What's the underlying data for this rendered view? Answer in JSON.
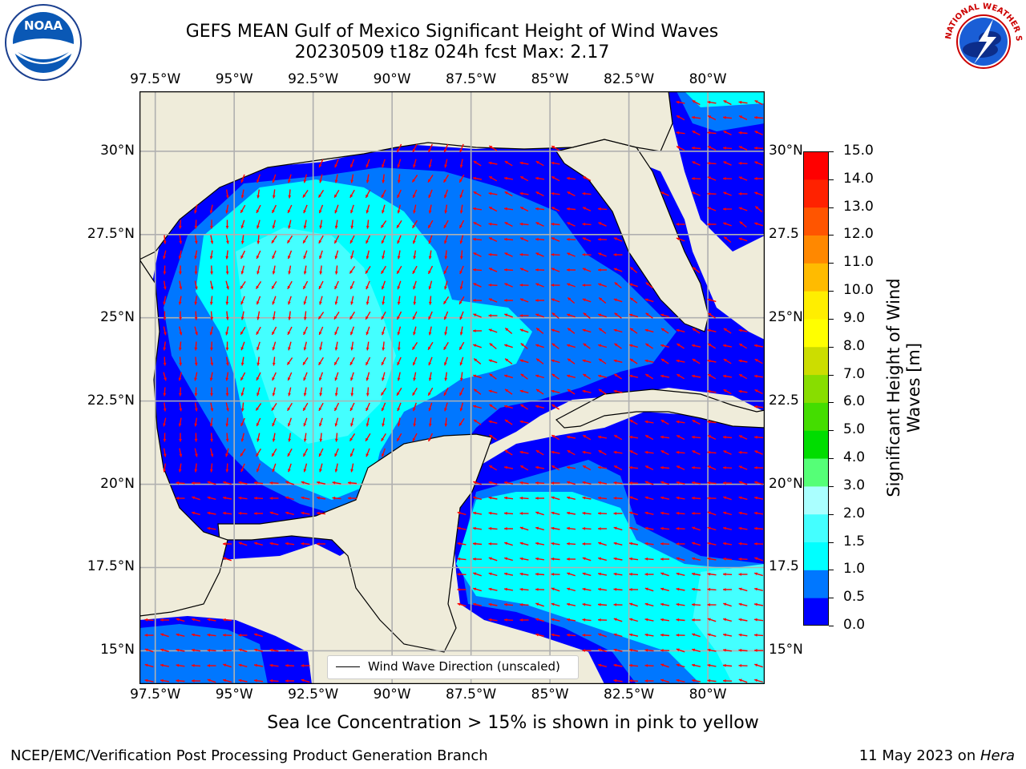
{
  "title": {
    "line1": "GEFS MEAN Gulf of Mexico Significant Height of Wind Waves",
    "line2": "20230509 t18z 024h fcst   Max: 2.17"
  },
  "logos": {
    "noaa_text": "NOAA",
    "nws_ring_text": "NATIONAL WEATHER SERVICE"
  },
  "map": {
    "lon_labels": [
      "97.5°W",
      "95°W",
      "92.5°W",
      "90°W",
      "87.5°W",
      "85°W",
      "82.5°W",
      "80°W"
    ],
    "lat_labels_left": [
      "30°N",
      "27.5°N",
      "25°N",
      "22.5°N",
      "20°N",
      "17.5°N",
      "15°N"
    ],
    "lat_labels_right": [
      "30°N",
      "27.5",
      "25°N",
      "22.5",
      "20°N",
      "17.5",
      "15°N"
    ],
    "lon_range": [
      -98,
      -78.2
    ],
    "lat_range": [
      14,
      31.8
    ],
    "land_color": "#efecda",
    "arrow_color": "#ff0000",
    "legend_label": "Wind Wave Direction (unscaled)"
  },
  "colorbar": {
    "tick_labels": [
      "0.0",
      "0.5",
      "1.0",
      "1.5",
      "2.0",
      "3.0",
      "4.0",
      "5.0",
      "6.0",
      "7.0",
      "8.0",
      "9.0",
      "10.0",
      "11.0",
      "12.0",
      "13.0",
      "14.0",
      "15.0"
    ],
    "colors": [
      "#0000ff",
      "#0077ff",
      "#00ffff",
      "#44ffff",
      "#aaffff",
      "#55ff77",
      "#00dd00",
      "#44dd00",
      "#88dd00",
      "#ccdd00",
      "#ffff00",
      "#ffee00",
      "#ffbb00",
      "#ff8800",
      "#ff5500",
      "#ff2200",
      "#ff0000"
    ],
    "label": "Significant Height of Wind Waves [m]"
  },
  "notes": {
    "ice": "Sea Ice Concentration > 15% is shown in pink to yellow",
    "footer_left": "NCEP/EMC/Verification Post Processing Product Generation Branch",
    "footer_date": "11 May 2023 on ",
    "footer_host": "Hera"
  }
}
